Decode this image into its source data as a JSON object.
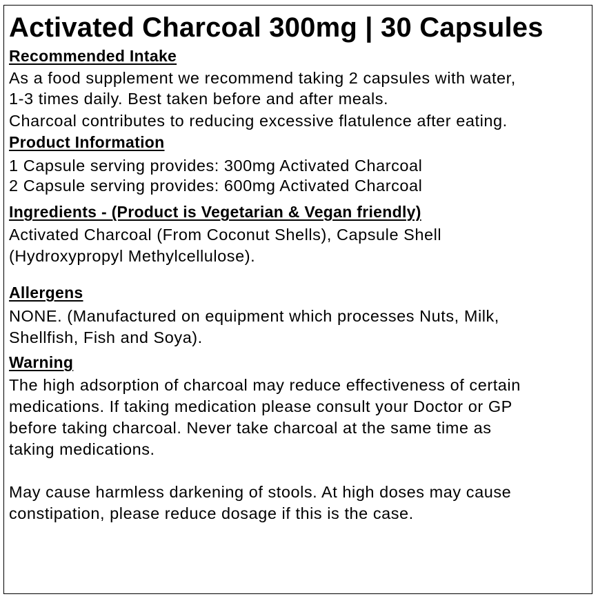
{
  "title": "Activated Charcoal 300mg | 30 Capsules",
  "sections": {
    "intake": {
      "heading": "Recommended Intake",
      "lines": [
        "As a food supplement we recommend taking 2 capsules with water,",
        "1-3 times daily. Best taken before and after meals.",
        "Charcoal contributes to reducing excessive flatulence after eating."
      ]
    },
    "product": {
      "heading": "Product Information",
      "lines": [
        "1 Capsule serving provides: 300mg Activated Charcoal",
        "2 Capsule serving provides: 600mg Activated Charcoal"
      ]
    },
    "ingredients": {
      "heading": "Ingredients - (Product is Vegetarian & Vegan friendly)",
      "lines": [
        "Activated Charcoal (From Coconut Shells), Capsule Shell",
        "(Hydroxypropyl Methylcellulose)."
      ]
    },
    "allergens": {
      "heading": "Allergens",
      "lines": [
        "NONE. (Manufactured on equipment which processes Nuts, Milk,",
        "Shellfish, Fish and Soya)."
      ]
    },
    "warning": {
      "heading": "Warning",
      "lines": [
        "The high adsorption of charcoal may reduce effectiveness of certain",
        "medications. If taking medication please consult your Doctor or GP",
        "before taking charcoal. Never take charcoal at the same time as",
        "taking medications.",
        "May cause harmless darkening of stools. At high doses may cause",
        "constipation, please reduce dosage if this is the case."
      ]
    }
  }
}
